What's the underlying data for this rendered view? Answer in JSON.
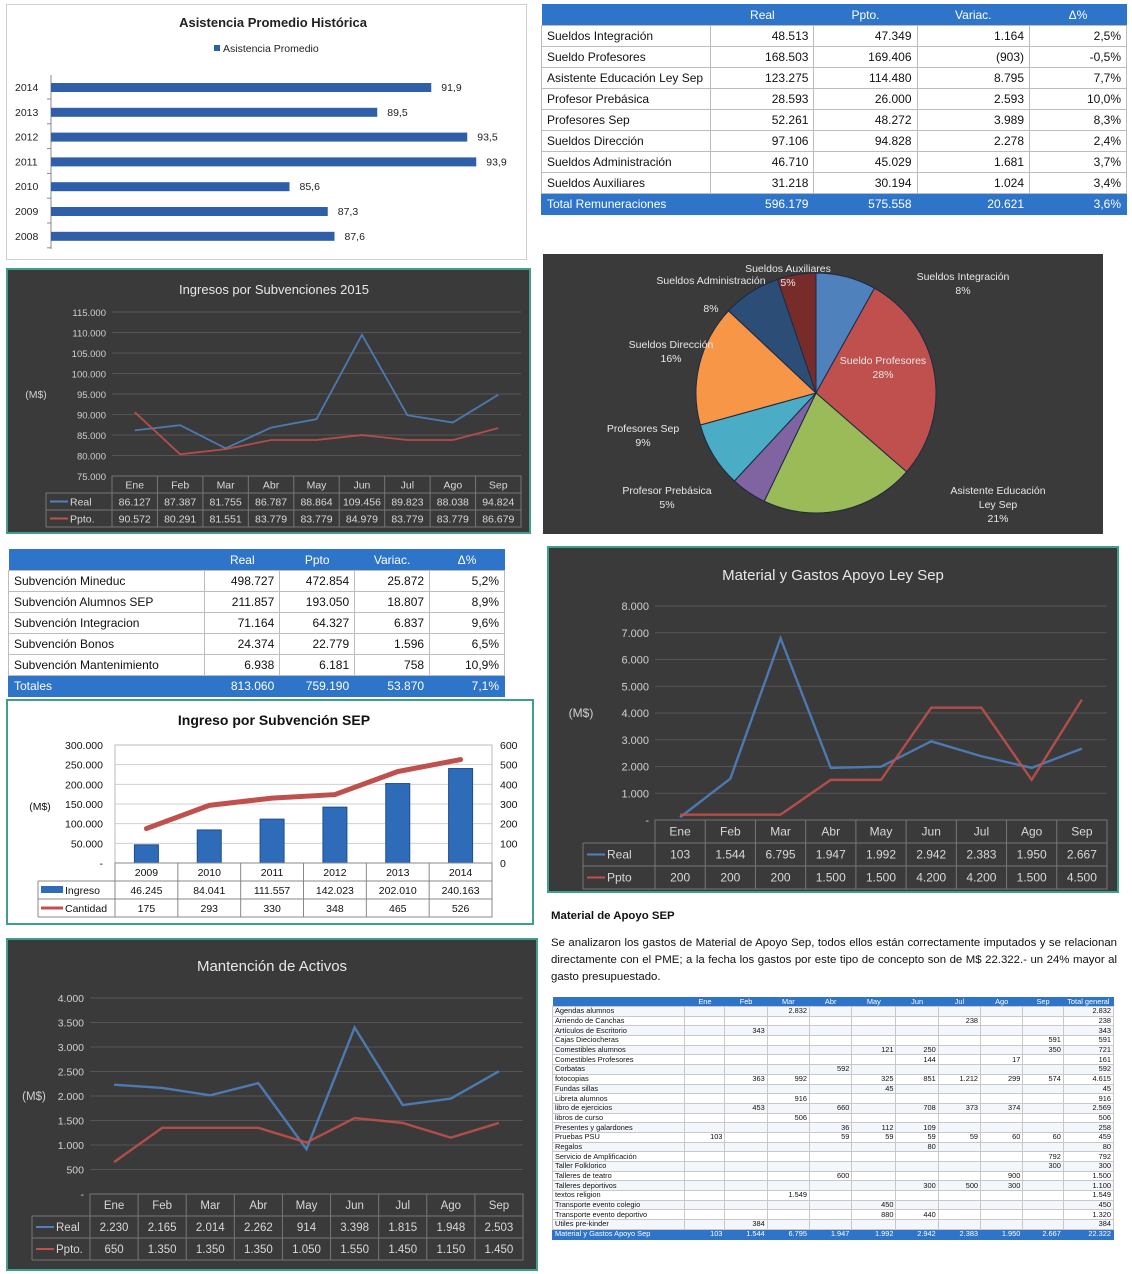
{
  "charts": {
    "asistencia": {
      "chart_data": {
        "type": "bar",
        "title": "Asistencia Promedio Histórica",
        "series": [
          {
            "name": "Asistencia Promedio",
            "values": [
              91.9,
              89.5,
              93.5,
              93.9,
              85.6,
              87.3,
              87.6
            ]
          }
        ],
        "categories": [
          "2014",
          "2013",
          "2012",
          "2011",
          "2010",
          "2009",
          "2008"
        ],
        "value_labels": [
          "91,9",
          "89,5",
          "93,5",
          "93,9",
          "85,6",
          "87,3",
          "87,6"
        ],
        "xlim": [
          75,
          95
        ],
        "orientation": "horizontal",
        "color": "#2e5fa8"
      }
    },
    "ingresos": {
      "chart_data": {
        "type": "line",
        "title": "Ingresos por Subvenciones 2015",
        "ylabel": "(M$)",
        "ylim": [
          75000,
          115000
        ],
        "yticks": [
          "75.000",
          "80.000",
          "85.000",
          "90.000",
          "95.000",
          "100.000",
          "105.000",
          "110.000",
          "115.000"
        ],
        "categories": [
          "Ene",
          "Feb",
          "Mar",
          "Abr",
          "May",
          "Jun",
          "Jul",
          "Ago",
          "Sep"
        ],
        "series": [
          {
            "name": "Real",
            "color": "#4f81bd",
            "values": [
              86127,
              87387,
              81755,
              86787,
              88864,
              109456,
              89823,
              88038,
              94824
            ],
            "labels": [
              "86.127",
              "87.387",
              "81.755",
              "86.787",
              "88.864",
              "109.456",
              "89.823",
              "88.038",
              "94.824"
            ]
          },
          {
            "name": "Ppto.",
            "color": "#c0504d",
            "values": [
              90572,
              80291,
              81551,
              83779,
              83779,
              84979,
              83779,
              83779,
              86679
            ],
            "labels": [
              "90.572",
              "80.291",
              "81.551",
              "83.779",
              "83.779",
              "84.979",
              "83.779",
              "83.779",
              "86.679"
            ]
          }
        ]
      }
    },
    "pie": {
      "chart_data": {
        "type": "pie",
        "slices": [
          {
            "name": "Sueldos Integración",
            "pct": "8%",
            "value": 8.1,
            "color": "#4f81bd"
          },
          {
            "name": "Sueldo Profesores",
            "pct": "28%",
            "value": 28.3,
            "color": "#c0504d"
          },
          {
            "name": "Asistente Educación Ley Sep",
            "pct": "21%",
            "value": 20.7,
            "color": "#9bbb59"
          },
          {
            "name": "Profesor Prebásica",
            "pct": "5%",
            "value": 4.8,
            "color": "#8064a2"
          },
          {
            "name": "Profesores Sep",
            "pct": "9%",
            "value": 8.8,
            "color": "#4bacc6"
          },
          {
            "name": "Sueldos Dirección",
            "pct": "16%",
            "value": 16.3,
            "color": "#f79646"
          },
          {
            "name": "Sueldos Administración",
            "pct": "8%",
            "value": 7.8,
            "color": "#2c4d75"
          },
          {
            "name": "Sueldos Auxiliares",
            "pct": "5%",
            "value": 5.2,
            "color": "#772c2a"
          }
        ]
      }
    },
    "material": {
      "chart_data": {
        "type": "line",
        "title": "Material y Gastos Apoyo Ley Sep",
        "ylabel": "(M$)",
        "ylim": [
          0,
          8000
        ],
        "yticks": [
          "-",
          "1.000",
          "2.000",
          "3.000",
          "4.000",
          "5.000",
          "6.000",
          "7.000",
          "8.000"
        ],
        "categories": [
          "Ene",
          "Feb",
          "Mar",
          "Abr",
          "May",
          "Jun",
          "Jul",
          "Ago",
          "Sep"
        ],
        "series": [
          {
            "name": "Real",
            "color": "#4f81bd",
            "values": [
              103,
              1544,
              6795,
              1947,
              1992,
              2942,
              2383,
              1950,
              2667
            ],
            "labels": [
              "103",
              "1.544",
              "6.795",
              "1.947",
              "1.992",
              "2.942",
              "2.383",
              "1.950",
              "2.667"
            ]
          },
          {
            "name": "Ppto",
            "color": "#c0504d",
            "values": [
              200,
              200,
              200,
              1500,
              1500,
              4200,
              4200,
              1500,
              4500
            ],
            "labels": [
              "200",
              "200",
              "200",
              "1.500",
              "1.500",
              "4.200",
              "4.200",
              "1.500",
              "4.500"
            ]
          }
        ]
      }
    },
    "sep": {
      "chart_data": {
        "type": "bar",
        "title": "Ingreso por Subvención SEP",
        "ylabel": "(M$)",
        "ylim": [
          0,
          300000
        ],
        "y2lim": [
          0,
          600
        ],
        "yticks": [
          "-",
          "50.000",
          "100.000",
          "150.000",
          "200.000",
          "250.000",
          "300.000"
        ],
        "y2ticks": [
          "0",
          "100",
          "200",
          "300",
          "400",
          "500",
          "600"
        ],
        "categories": [
          "2009",
          "2010",
          "2011",
          "2012",
          "2013",
          "2014"
        ],
        "series": [
          {
            "name": "Ingreso",
            "color": "#2e6bb8",
            "values": [
              46245,
              84041,
              111557,
              142023,
              202010,
              240163
            ],
            "labels": [
              "46.245",
              "84.041",
              "111.557",
              "142.023",
              "202.010",
              "240.163"
            ]
          },
          {
            "name": "Cantidad",
            "color": "#c0504d",
            "axis": "secondary",
            "values": [
              175,
              293,
              330,
              348,
              465,
              526
            ],
            "labels": [
              "175",
              "293",
              "330",
              "348",
              "465",
              "526"
            ]
          }
        ]
      }
    },
    "mantencion": {
      "chart_data": {
        "type": "line",
        "title": "Mantención de Activos",
        "ylabel": "(M$)",
        "ylim": [
          0,
          4000
        ],
        "yticks": [
          "-",
          "500",
          "1.000",
          "1.500",
          "2.000",
          "2.500",
          "3.000",
          "3.500",
          "4.000"
        ],
        "categories": [
          "Ene",
          "Feb",
          "Mar",
          "Abr",
          "May",
          "Jun",
          "Jul",
          "Ago",
          "Sep"
        ],
        "series": [
          {
            "name": "Real",
            "color": "#4f81bd",
            "values": [
              2230,
              2165,
              2014,
              2262,
              914,
              3398,
              1815,
              1948,
              2503
            ],
            "labels": [
              "2.230",
              "2.165",
              "2.014",
              "2.262",
              "914",
              "3.398",
              "1.815",
              "1.948",
              "2.503"
            ]
          },
          {
            "name": "Ppto.",
            "color": "#c0504d",
            "values": [
              650,
              1350,
              1350,
              1350,
              1050,
              1550,
              1450,
              1150,
              1450
            ],
            "labels": [
              "650",
              "1.350",
              "1.350",
              "1.350",
              "1.050",
              "1.550",
              "1.450",
              "1.150",
              "1.450"
            ]
          }
        ]
      }
    }
  },
  "remuneraciones": {
    "headers": [
      "",
      "Real",
      "Ppto.",
      "Variac.",
      "Δ%"
    ],
    "rows": [
      [
        "Sueldos Integración",
        "48.513",
        "47.349",
        "1.164",
        "2,5%"
      ],
      [
        "Sueldo Profesores",
        "168.503",
        "169.406",
        "(903)",
        "-0,5%"
      ],
      [
        "Asistente Educación Ley Sep",
        "123.275",
        "114.480",
        "8.795",
        "7,7%"
      ],
      [
        "Profesor Prebásica",
        "28.593",
        "26.000",
        "2.593",
        "10,0%"
      ],
      [
        "Profesores Sep",
        "52.261",
        "48.272",
        "3.989",
        "8,3%"
      ],
      [
        "Sueldos Dirección",
        "97.106",
        "94.828",
        "2.278",
        "2,4%"
      ],
      [
        "Sueldos Administración",
        "46.710",
        "45.029",
        "1.681",
        "3,7%"
      ],
      [
        "Sueldos Auxiliares",
        "31.218",
        "30.194",
        "1.024",
        "3,4%"
      ]
    ],
    "total": [
      "Total Remuneraciones",
      "596.179",
      "575.558",
      "20.621",
      "3,6%"
    ]
  },
  "subvenciones": {
    "headers": [
      "",
      "Real",
      "Ppto",
      "Variac.",
      "Δ%"
    ],
    "rows": [
      [
        "Subvención Mineduc",
        "498.727",
        "472.854",
        "25.872",
        "5,2%"
      ],
      [
        "Subvención Alumnos SEP",
        "211.857",
        "193.050",
        "18.807",
        "8,9%"
      ],
      [
        "Subvención Integracion",
        "71.164",
        "64.327",
        "6.837",
        "9,6%"
      ],
      [
        "Subvención Bonos",
        "24.374",
        "22.779",
        "1.596",
        "6,5%"
      ],
      [
        "Subvención Mantenimiento",
        "6.938",
        "6.181",
        "758",
        "10,9%"
      ]
    ],
    "total": [
      "Totales",
      "813.060",
      "759.190",
      "53.870",
      "7,1%"
    ]
  },
  "material_text": {
    "heading": "Material de Apoyo SEP",
    "paragraph": "Se analizaron los gastos de Material de Apoyo Sep, todos ellos están correctamente imputados y se relacionan directamente con el PME; a la fecha los gastos por este tipo de concepto son de M$ 22.322.- un 24% mayor al gasto presupuestado."
  },
  "material_table": {
    "headers": [
      "",
      "Ene",
      "Feb",
      "Mar",
      "Abr",
      "May",
      "Jun",
      "Jul",
      "Ago",
      "Sep",
      "Total general"
    ],
    "rows": [
      [
        "Agendas alumnos",
        "",
        "",
        "2.832",
        "",
        "",
        "",
        "",
        "",
        "",
        "2.832"
      ],
      [
        "Arriendo de Canchas",
        "",
        "",
        "",
        "",
        "",
        "",
        "238",
        "",
        "",
        "238"
      ],
      [
        "Artículos de Escritorio",
        "",
        "343",
        "",
        "",
        "",
        "",
        "",
        "",
        "",
        "343"
      ],
      [
        "Cajas Dieciocheras",
        "",
        "",
        "",
        "",
        "",
        "",
        "",
        "",
        "591",
        "591"
      ],
      [
        "Comestibles alumnos",
        "",
        "",
        "",
        "",
        "121",
        "250",
        "",
        "",
        "350",
        "721"
      ],
      [
        "Comestibles Profesores",
        "",
        "",
        "",
        "",
        "",
        "144",
        "",
        "17",
        "",
        "161"
      ],
      [
        "Corbatas",
        "",
        "",
        "",
        "592",
        "",
        "",
        "",
        "",
        "",
        "592"
      ],
      [
        "fotocopias",
        "",
        "363",
        "992",
        "",
        "325",
        "851",
        "1.212",
        "299",
        "574",
        "4.615"
      ],
      [
        "Fundas sillas",
        "",
        "",
        "",
        "",
        "45",
        "",
        "",
        "",
        "",
        "45"
      ],
      [
        "Libreta alumnos",
        "",
        "",
        "916",
        "",
        "",
        "",
        "",
        "",
        "",
        "916"
      ],
      [
        "libro de ejercicios",
        "",
        "453",
        "",
        "660",
        "",
        "708",
        "373",
        "374",
        "",
        "2.569"
      ],
      [
        "libros de curso",
        "",
        "",
        "506",
        "",
        "",
        "",
        "",
        "",
        "",
        "506"
      ],
      [
        "Presentes y galardones",
        "",
        "",
        "",
        "36",
        "112",
        "109",
        "",
        "",
        "",
        "258"
      ],
      [
        "Pruebas PSU",
        "103",
        "",
        "",
        "59",
        "59",
        "59",
        "59",
        "60",
        "60",
        "459"
      ],
      [
        "Regalos",
        "",
        "",
        "",
        "",
        "",
        "80",
        "",
        "",
        "",
        "80"
      ],
      [
        "Servicio de Amplificación",
        "",
        "",
        "",
        "",
        "",
        "",
        "",
        "",
        "792",
        "792"
      ],
      [
        "Taller Folklorico",
        "",
        "",
        "",
        "",
        "",
        "",
        "",
        "",
        "300",
        "300"
      ],
      [
        "Talleres de teatro",
        "",
        "",
        "",
        "600",
        "",
        "",
        "",
        "900",
        "",
        "1.500"
      ],
      [
        "Talleres deportivos",
        "",
        "",
        "",
        "",
        "",
        "300",
        "500",
        "300",
        "",
        "1.100"
      ],
      [
        "textos religion",
        "",
        "",
        "1.549",
        "",
        "",
        "",
        "",
        "",
        "",
        "1.549"
      ],
      [
        "Transporte evento colegio",
        "",
        "",
        "",
        "",
        "450",
        "",
        "",
        "",
        "",
        "450"
      ],
      [
        "Transporte evento deportivo",
        "",
        "",
        "",
        "",
        "880",
        "440",
        "",
        "",
        "",
        "1.320"
      ],
      [
        "Utiles pre-kinder",
        "",
        "384",
        "",
        "",
        "",
        "",
        "",
        "",
        "",
        "384"
      ]
    ],
    "total": [
      "Material y Gastos Apoyo Sep",
      "103",
      "1.544",
      "6.795",
      "1.947",
      "1.992",
      "2.942",
      "2.383",
      "1.950",
      "2.667",
      "22.322"
    ]
  }
}
